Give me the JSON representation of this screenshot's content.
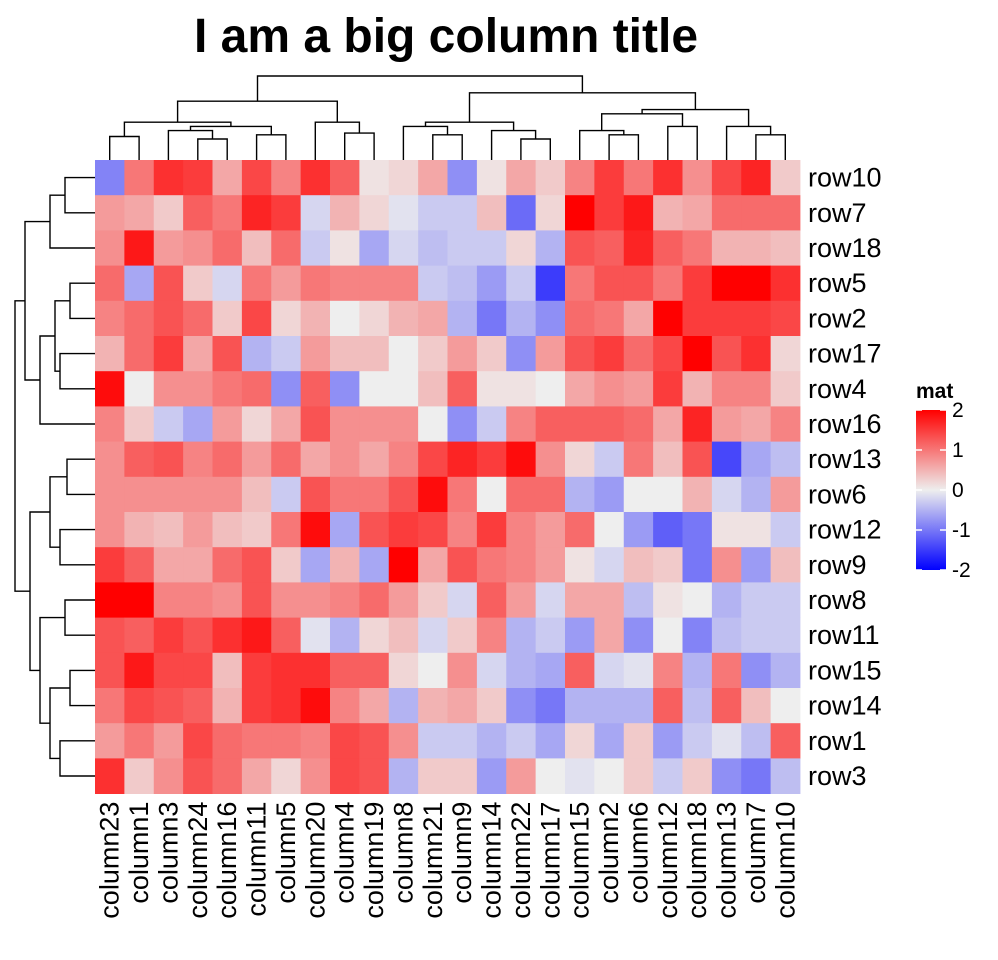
{
  "chart_data": {
    "type": "heatmap",
    "title": "I am a big column title",
    "columns": [
      "column23",
      "column1",
      "column3",
      "column24",
      "column16",
      "column11",
      "column5",
      "column20",
      "column4",
      "column19",
      "column8",
      "column21",
      "column9",
      "column14",
      "column22",
      "column17",
      "column15",
      "column2",
      "column6",
      "column12",
      "column18",
      "column13",
      "column7",
      "column10"
    ],
    "rows": [
      "row10",
      "row7",
      "row18",
      "row5",
      "row2",
      "row17",
      "row4",
      "row16",
      "row13",
      "row6",
      "row12",
      "row9",
      "row8",
      "row11",
      "row15",
      "row14",
      "row1",
      "row3"
    ],
    "values": [
      [
        -0.9,
        1.0,
        1.6,
        1.5,
        0.6,
        1.4,
        0.9,
        1.6,
        1.2,
        0.1,
        0.2,
        0.6,
        -0.8,
        0.1,
        0.6,
        0.3,
        0.9,
        1.5,
        1.0,
        1.6,
        0.8,
        1.4,
        1.7,
        0.3
      ],
      [
        0.7,
        0.6,
        0.3,
        1.2,
        1.0,
        1.7,
        1.5,
        -0.2,
        0.5,
        0.2,
        -0.1,
        -0.3,
        -0.3,
        0.4,
        -1.1,
        0.2,
        2.1,
        1.5,
        1.8,
        0.5,
        0.6,
        1.1,
        1.1,
        1.1
      ],
      [
        0.8,
        1.8,
        0.7,
        0.8,
        1.1,
        0.4,
        1.1,
        -0.3,
        0.1,
        -0.6,
        -0.2,
        -0.4,
        -0.3,
        -0.3,
        0.2,
        -0.5,
        1.3,
        1.2,
        1.7,
        1.2,
        1.0,
        0.5,
        0.5,
        0.4
      ],
      [
        1.1,
        -0.6,
        1.3,
        0.3,
        -0.2,
        1.0,
        0.7,
        1.0,
        0.9,
        0.9,
        0.9,
        -0.3,
        -0.4,
        -0.7,
        -0.3,
        -1.5,
        1.0,
        1.3,
        1.3,
        1.0,
        1.5,
        2.1,
        2.1,
        1.6
      ],
      [
        0.9,
        1.1,
        1.3,
        1.1,
        0.3,
        1.4,
        0.2,
        0.5,
        0.0,
        0.2,
        0.5,
        0.6,
        -0.5,
        -1.0,
        -0.5,
        -0.8,
        1.1,
        1.0,
        0.6,
        2.2,
        1.5,
        1.5,
        1.5,
        1.4
      ],
      [
        0.5,
        1.1,
        1.5,
        0.6,
        1.3,
        -0.5,
        -0.3,
        0.7,
        0.4,
        0.4,
        0.0,
        0.3,
        0.7,
        0.3,
        -0.8,
        0.7,
        1.3,
        1.5,
        1.1,
        1.4,
        2.2,
        1.3,
        1.6,
        0.2
      ],
      [
        1.9,
        0.0,
        0.8,
        0.8,
        1.0,
        1.1,
        -0.8,
        1.2,
        -0.8,
        0.0,
        0.0,
        0.4,
        1.2,
        0.1,
        0.1,
        0.0,
        0.6,
        0.8,
        0.7,
        1.5,
        0.5,
        0.9,
        0.9,
        0.3
      ],
      [
        0.9,
        0.3,
        -0.3,
        -0.6,
        0.7,
        0.2,
        0.6,
        1.3,
        0.8,
        0.8,
        0.8,
        0.0,
        -0.8,
        -0.3,
        0.9,
        1.2,
        1.2,
        1.2,
        1.1,
        0.6,
        1.7,
        0.7,
        0.6,
        0.9
      ],
      [
        0.8,
        1.2,
        1.3,
        0.9,
        1.1,
        0.7,
        1.1,
        0.6,
        0.8,
        0.6,
        0.9,
        1.4,
        1.7,
        1.5,
        1.9,
        0.8,
        0.2,
        -0.3,
        1.0,
        0.4,
        1.3,
        -1.4,
        -0.6,
        -0.4
      ],
      [
        0.8,
        0.8,
        0.8,
        0.8,
        0.8,
        0.4,
        -0.3,
        1.3,
        1.0,
        1.0,
        1.3,
        1.9,
        1.0,
        0.0,
        1.1,
        1.1,
        -0.5,
        -0.7,
        0.0,
        0.0,
        0.5,
        -0.2,
        -0.5,
        0.7
      ],
      [
        0.8,
        0.5,
        0.4,
        0.7,
        0.4,
        0.3,
        1.0,
        1.9,
        -0.6,
        1.3,
        1.5,
        1.4,
        0.9,
        1.5,
        0.9,
        0.7,
        1.1,
        0.0,
        -0.7,
        -1.2,
        -1.0,
        0.1,
        0.1,
        -0.3
      ],
      [
        1.5,
        1.2,
        0.6,
        0.6,
        1.1,
        1.3,
        0.3,
        -0.6,
        0.5,
        -0.6,
        2.0,
        0.6,
        1.3,
        1.0,
        0.9,
        0.7,
        0.1,
        -0.2,
        0.4,
        0.3,
        -1.0,
        0.8,
        -0.7,
        0.4
      ],
      [
        2.0,
        2.2,
        0.9,
        0.9,
        0.8,
        1.3,
        0.8,
        0.8,
        0.9,
        1.1,
        0.7,
        0.3,
        -0.2,
        1.2,
        0.7,
        -0.2,
        0.6,
        0.6,
        -0.4,
        0.1,
        0.0,
        -0.5,
        -0.3,
        -0.3
      ],
      [
        1.3,
        1.2,
        1.5,
        1.3,
        1.6,
        1.8,
        1.2,
        -0.1,
        -0.5,
        0.2,
        0.4,
        -0.2,
        0.3,
        0.9,
        -0.5,
        -0.3,
        -0.7,
        0.6,
        -0.8,
        0.0,
        -0.9,
        -0.4,
        -0.3,
        -0.3
      ],
      [
        1.3,
        1.8,
        1.4,
        1.4,
        0.4,
        1.5,
        1.6,
        1.6,
        1.2,
        1.2,
        0.2,
        0.0,
        0.8,
        -0.2,
        -0.5,
        -0.6,
        1.2,
        -0.2,
        -0.1,
        0.9,
        -0.5,
        1.0,
        -0.8,
        -0.5
      ],
      [
        1.0,
        1.4,
        1.3,
        1.2,
        0.5,
        1.5,
        1.6,
        1.9,
        0.9,
        0.6,
        -0.5,
        0.5,
        0.6,
        0.3,
        -0.8,
        -1.0,
        -0.5,
        -0.5,
        -0.5,
        1.2,
        -0.4,
        1.2,
        0.4,
        0.0
      ],
      [
        0.7,
        1.0,
        0.7,
        1.4,
        1.1,
        1.0,
        1.0,
        0.9,
        1.4,
        1.3,
        0.8,
        -0.3,
        -0.3,
        -0.5,
        -0.3,
        -0.6,
        0.2,
        -0.6,
        0.3,
        -0.7,
        -0.3,
        -0.1,
        -0.4,
        1.2
      ],
      [
        1.6,
        0.3,
        0.8,
        1.3,
        1.1,
        0.6,
        0.2,
        0.8,
        1.4,
        1.3,
        -0.5,
        0.3,
        0.3,
        -0.7,
        0.7,
        0.0,
        -0.1,
        0.0,
        0.3,
        -0.3,
        0.3,
        -0.8,
        -1.0,
        -0.4
      ]
    ],
    "legend": {
      "title": "mat",
      "ticks": [
        "2",
        "1",
        "0",
        "-1",
        "-2"
      ],
      "tick_values": [
        2,
        1,
        0,
        -1,
        -2
      ],
      "range": [
        -2,
        2
      ],
      "colors": {
        "low": "#0000FF",
        "mid": "#EEEEEE",
        "high": "#FF0000"
      }
    },
    "dendrograms": {
      "columns": true,
      "rows": true
    }
  }
}
